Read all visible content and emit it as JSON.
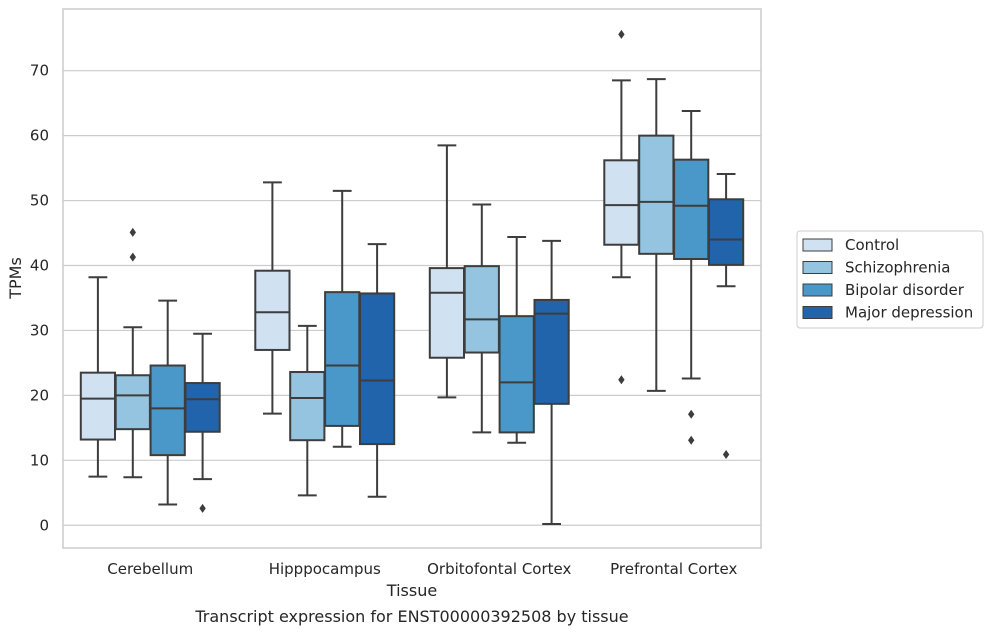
{
  "caption": "Transcript expression for ENST00000392508 by tissue",
  "chart_data": {
    "type": "box",
    "xlabel": "Tissue",
    "ylabel": "TPMs",
    "ylim": [
      -3.5,
      79.5
    ],
    "yticks": [
      0,
      10,
      20,
      30,
      40,
      50,
      60,
      70
    ],
    "grid": "horizontal",
    "legend_position": "right",
    "categories": [
      "Cerebellum",
      "Hipppocampus",
      "Orbitofontal Cortex",
      "Prefrontal Cortex"
    ],
    "series": [
      {
        "name": "Control",
        "color": "#d0e1f2",
        "boxes": [
          {
            "whisker_low": 7.5,
            "q1": 13.2,
            "median": 19.5,
            "q3": 23.5,
            "whisker_high": 38.2,
            "outliers": []
          },
          {
            "whisker_low": 17.2,
            "q1": 27.0,
            "median": 32.8,
            "q3": 39.2,
            "whisker_high": 52.8,
            "outliers": []
          },
          {
            "whisker_low": 19.7,
            "q1": 25.8,
            "median": 35.8,
            "q3": 39.6,
            "whisker_high": 58.5,
            "outliers": []
          },
          {
            "whisker_low": 38.2,
            "q1": 43.2,
            "median": 49.3,
            "q3": 56.2,
            "whisker_high": 68.5,
            "outliers": [
              75.6,
              22.4
            ]
          }
        ]
      },
      {
        "name": "Schizophrenia",
        "color": "#94c4df",
        "boxes": [
          {
            "whisker_low": 7.4,
            "q1": 14.8,
            "median": 20.0,
            "q3": 23.1,
            "whisker_high": 30.5,
            "outliers": [
              45.1,
              41.3
            ]
          },
          {
            "whisker_low": 4.6,
            "q1": 13.1,
            "median": 19.6,
            "q3": 23.6,
            "whisker_high": 30.7,
            "outliers": []
          },
          {
            "whisker_low": 14.3,
            "q1": 26.6,
            "median": 31.7,
            "q3": 39.9,
            "whisker_high": 49.4,
            "outliers": []
          },
          {
            "whisker_low": 20.7,
            "q1": 41.8,
            "median": 49.8,
            "q3": 60.0,
            "whisker_high": 68.7,
            "outliers": []
          }
        ]
      },
      {
        "name": "Bipolar disorder",
        "color": "#4a98c9",
        "boxes": [
          {
            "whisker_low": 3.2,
            "q1": 10.8,
            "median": 18.0,
            "q3": 24.6,
            "whisker_high": 34.6,
            "outliers": []
          },
          {
            "whisker_low": 12.1,
            "q1": 15.3,
            "median": 24.6,
            "q3": 35.9,
            "whisker_high": 51.5,
            "outliers": []
          },
          {
            "whisker_low": 12.7,
            "q1": 14.3,
            "median": 22.0,
            "q3": 32.2,
            "whisker_high": 44.4,
            "outliers": []
          },
          {
            "whisker_low": 22.6,
            "q1": 41.0,
            "median": 49.2,
            "q3": 56.3,
            "whisker_high": 63.8,
            "outliers": [
              17.1,
              13.1
            ]
          }
        ]
      },
      {
        "name": "Major depression",
        "color": "#2164ab",
        "boxes": [
          {
            "whisker_low": 7.1,
            "q1": 14.4,
            "median": 19.4,
            "q3": 21.9,
            "whisker_high": 29.5,
            "outliers": [
              2.6
            ]
          },
          {
            "whisker_low": 4.4,
            "q1": 12.5,
            "median": 22.3,
            "q3": 35.7,
            "whisker_high": 43.3,
            "outliers": []
          },
          {
            "whisker_low": 0.2,
            "q1": 18.7,
            "median": 32.6,
            "q3": 34.7,
            "whisker_high": 43.8,
            "outliers": []
          },
          {
            "whisker_low": 36.8,
            "q1": 40.1,
            "median": 44.0,
            "q3": 50.2,
            "whisker_high": 54.1,
            "outliers": [
              10.9
            ]
          }
        ]
      }
    ]
  }
}
